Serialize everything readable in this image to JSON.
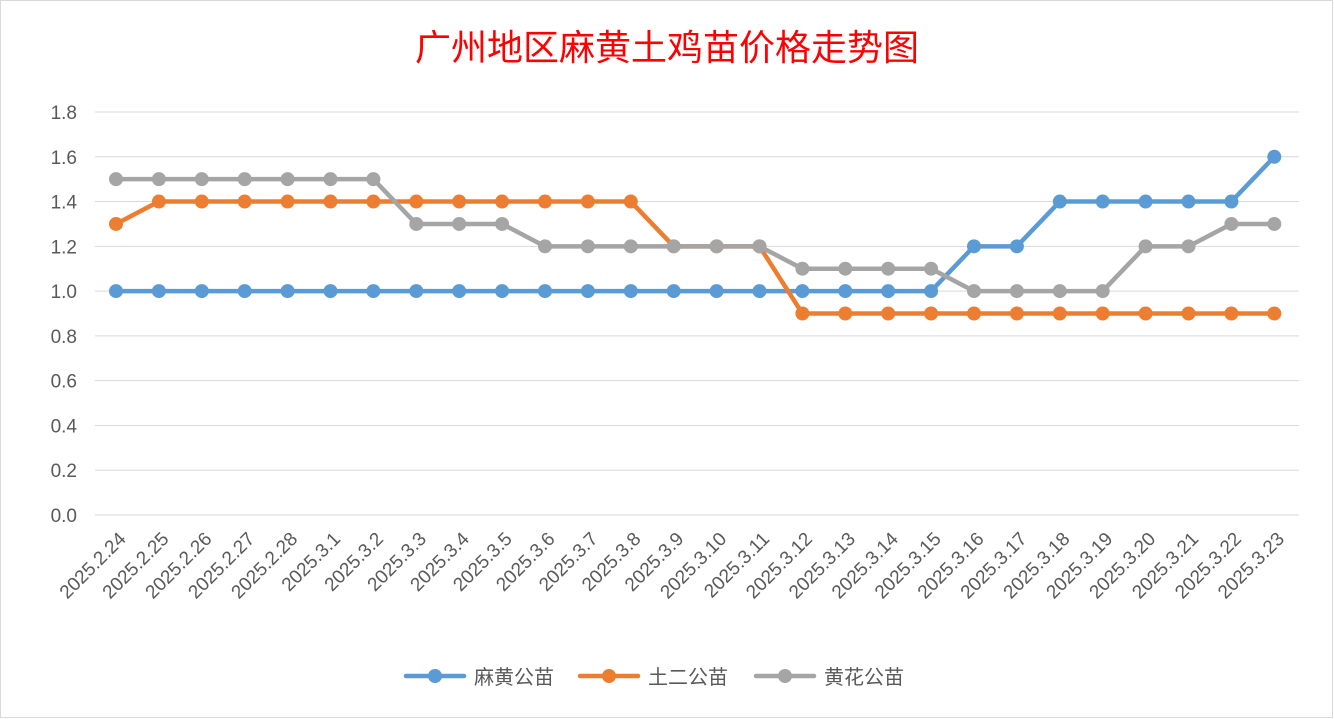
{
  "chart_data": {
    "type": "line",
    "title": "广州地区麻黄土鸡苗价格走势图",
    "xlabel": "",
    "ylabel": "",
    "ylim": [
      0,
      1.8
    ],
    "yticks": [
      "0.0",
      "0.2",
      "0.4",
      "0.6",
      "0.8",
      "1.0",
      "1.2",
      "1.4",
      "1.6",
      "1.8"
    ],
    "grid": true,
    "legend_position": "bottom",
    "categories": [
      "2025.2.24",
      "2025.2.25",
      "2025.2.26",
      "2025.2.27",
      "2025.2.28",
      "2025.3.1",
      "2025.3.2",
      "2025.3.3",
      "2025.3.4",
      "2025.3.5",
      "2025.3.6",
      "2025.3.7",
      "2025.3.8",
      "2025.3.9",
      "2025.3.10",
      "2025.3.11",
      "2025.3.12",
      "2025.3.13",
      "2025.3.14",
      "2025.3.15",
      "2025.3.16",
      "2025.3.17",
      "2025.3.18",
      "2025.3.19",
      "2025.3.20",
      "2025.3.21",
      "2025.3.22",
      "2025.3.23"
    ],
    "series": [
      {
        "name": "麻黄公苗",
        "color": "#5b9bd5",
        "values": [
          1.0,
          1.0,
          1.0,
          1.0,
          1.0,
          1.0,
          1.0,
          1.0,
          1.0,
          1.0,
          1.0,
          1.0,
          1.0,
          1.0,
          1.0,
          1.0,
          1.0,
          1.0,
          1.0,
          1.0,
          1.2,
          1.2,
          1.4,
          1.4,
          1.4,
          1.4,
          1.4,
          1.6
        ]
      },
      {
        "name": "土二公苗",
        "color": "#ed7d31",
        "values": [
          1.3,
          1.4,
          1.4,
          1.4,
          1.4,
          1.4,
          1.4,
          1.4,
          1.4,
          1.4,
          1.4,
          1.4,
          1.4,
          1.2,
          1.2,
          1.2,
          0.9,
          0.9,
          0.9,
          0.9,
          0.9,
          0.9,
          0.9,
          0.9,
          0.9,
          0.9,
          0.9,
          0.9
        ]
      },
      {
        "name": "黄花公苗",
        "color": "#a5a5a5",
        "values": [
          1.5,
          1.5,
          1.5,
          1.5,
          1.5,
          1.5,
          1.5,
          1.3,
          1.3,
          1.3,
          1.2,
          1.2,
          1.2,
          1.2,
          1.2,
          1.2,
          1.1,
          1.1,
          1.1,
          1.1,
          1.0,
          1.0,
          1.0,
          1.0,
          1.2,
          1.2,
          1.3,
          1.3
        ]
      }
    ]
  }
}
